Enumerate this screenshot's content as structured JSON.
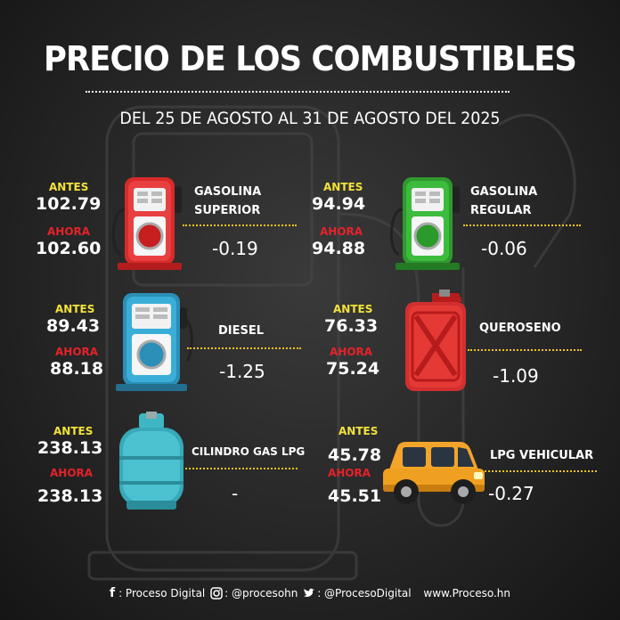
{
  "title": "PRECIO DE LOS COMBUSTIBLES",
  "subtitle": "DEL 25 DE AGOSTO AL 31 DE AGOSTO DEL 2025",
  "labels": {
    "antes": "ANTES",
    "ahora": "AHORA"
  },
  "fuels": [
    {
      "name_line1": "GASOLINA",
      "name_line2": "SUPERIOR",
      "antes": "102.79",
      "ahora": "102.60",
      "change": "-0.19",
      "icon": "red-fuel-pump-icon"
    },
    {
      "name_line1": "GASOLINA",
      "name_line2": "REGULAR",
      "antes": "94.94",
      "ahora": "94.88",
      "change": "-0.06",
      "icon": "green-fuel-pump-icon"
    },
    {
      "name_line1": "DIESEL",
      "antes": "89.43",
      "ahora": "88.18",
      "change": "-1.25",
      "icon": "blue-fuel-pump-icon"
    },
    {
      "name_line1": "QUEROSENO",
      "antes": "76.33",
      "ahora": "75.24",
      "change": "-1.09",
      "icon": "red-jerrycan-icon"
    },
    {
      "name_line1": "CILINDRO GAS LPG",
      "antes": "238.13",
      "ahora": "238.13",
      "change": "-",
      "icon": "gas-cylinder-icon"
    },
    {
      "name_line1": "LPG VEHICULAR",
      "antes": "45.78",
      "ahora": "45.51",
      "change": "-0.27",
      "icon": "suv-car-icon"
    }
  ],
  "footer": {
    "facebook": ": Proceso Digital",
    "instagram": ": @procesohn",
    "twitter": ": @ProcesoDigital",
    "website": "www.Proceso.hn"
  },
  "colors": {
    "antes": "#f3e23a",
    "ahora": "#e5222a",
    "dots": "#f3c21a",
    "background": "#262626"
  }
}
